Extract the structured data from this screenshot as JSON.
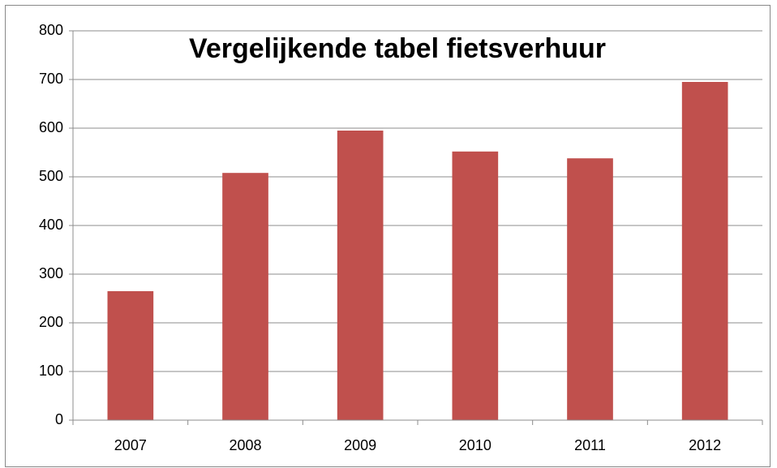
{
  "chart_data": {
    "type": "bar",
    "title": "Vergelijkende tabel fietsverhuur",
    "categories": [
      "2007",
      "2008",
      "2009",
      "2010",
      "2011",
      "2012"
    ],
    "values": [
      265,
      508,
      595,
      552,
      538,
      695
    ],
    "color": "#c0504d",
    "ylim": [
      0,
      800
    ],
    "yticks": [
      0,
      100,
      200,
      300,
      400,
      500,
      600,
      700,
      800
    ],
    "grid": true
  }
}
